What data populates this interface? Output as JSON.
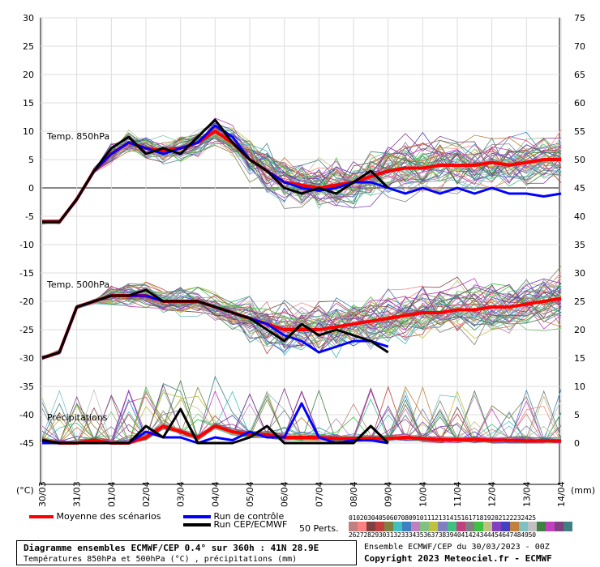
{
  "chart_data": {
    "type": "line",
    "title": "Diagramme ensembles ECMWF/CEP 0.4° sur 360h : 41N 28.9E",
    "subtitle": "Températures 850hPa et 500hPa (°C) , précipitations (mm)",
    "left_axis": {
      "unit": "(°C)",
      "ticks": [
        30,
        25,
        20,
        15,
        10,
        5,
        0,
        -5,
        -10,
        -15,
        -20,
        -25,
        -30,
        -35,
        -40,
        -45
      ],
      "range": [
        -45,
        30
      ]
    },
    "right_axis": {
      "unit": "(mm)",
      "ticks": [
        75,
        70,
        65,
        60,
        55,
        50,
        45,
        40,
        35,
        30,
        25,
        20,
        15,
        10,
        5,
        0
      ],
      "range": [
        0,
        75
      ]
    },
    "x_labels": [
      "30/03",
      "31/03",
      "01/04",
      "02/04",
      "03/04",
      "04/04",
      "05/04",
      "06/04",
      "07/04",
      "08/04",
      "09/04",
      "10/04",
      "11/04",
      "12/04",
      "13/04",
      "14/04"
    ],
    "panel_labels": {
      "t850": "Temp. 850hPa",
      "t500": "Temp. 500hPa",
      "precip": "Précipitations"
    },
    "series": [
      {
        "name": "Moyenne des scénarios",
        "color": "#ff0000",
        "panel": "t850",
        "x": [
          0,
          0.5,
          1,
          1.5,
          2,
          2.5,
          3,
          3.5,
          4,
          4.5,
          5,
          5.5,
          6,
          6.5,
          7,
          7.5,
          8,
          8.5,
          9,
          9.5,
          10,
          10.5,
          11,
          11.5,
          12,
          12.5,
          13,
          13.5,
          14,
          14.5,
          15
        ],
        "values": [
          -6,
          -6,
          -2,
          3,
          6,
          8,
          7,
          6.5,
          7,
          8,
          10,
          8,
          5,
          3,
          1,
          0.5,
          0,
          0.5,
          1,
          2,
          3,
          3.5,
          3.5,
          4,
          4,
          4,
          4.5,
          4,
          4.5,
          5,
          5
        ]
      },
      {
        "name": "Run de contrôle",
        "color": "#0000ff",
        "panel": "t850",
        "x": [
          0,
          0.5,
          1,
          1.5,
          2,
          2.5,
          3,
          3.5,
          4,
          4.5,
          5,
          5.5,
          6,
          6.5,
          7,
          7.5,
          8,
          8.5,
          9,
          9.5,
          10,
          10.5,
          11,
          11.5,
          12,
          12.5,
          13,
          13.5,
          14,
          14.5,
          15
        ],
        "values": [
          -6,
          -6,
          -2,
          3,
          6,
          8,
          7,
          6,
          7,
          8,
          11,
          9,
          5,
          3,
          1,
          0,
          -0.5,
          0,
          1,
          1,
          0,
          -1,
          0,
          -1,
          0,
          -1,
          0,
          -1,
          -1,
          -1.5,
          -1
        ]
      },
      {
        "name": "Run CEP/ECMWF",
        "color": "#000000",
        "panel": "t850",
        "x": [
          0,
          0.5,
          1,
          1.5,
          2,
          2.5,
          3,
          3.5,
          4,
          4.5,
          5,
          5.5,
          6,
          6.5,
          7,
          7.5,
          8,
          8.5,
          9,
          9.5,
          10
        ],
        "values": [
          -6,
          -6,
          -2,
          3,
          7,
          9,
          6,
          7,
          6,
          9,
          12,
          8,
          5,
          3,
          0,
          -1,
          0,
          -1,
          1,
          3,
          0
        ]
      },
      {
        "name": "Moyenne des scénarios",
        "color": "#ff0000",
        "panel": "t500",
        "x": [
          0,
          0.5,
          1,
          1.5,
          2,
          2.5,
          3,
          3.5,
          4,
          4.5,
          5,
          5.5,
          6,
          6.5,
          7,
          7.5,
          8,
          8.5,
          9,
          9.5,
          10,
          10.5,
          11,
          11.5,
          12,
          12.5,
          13,
          13.5,
          14,
          14.5,
          15
        ],
        "values": [
          -30,
          -29,
          -21,
          -20,
          -19,
          -19,
          -19,
          -20,
          -20,
          -20,
          -21,
          -22,
          -23,
          -24,
          -25,
          -25,
          -25,
          -24.5,
          -24,
          -23.5,
          -23,
          -22.5,
          -22,
          -22,
          -21.5,
          -21.5,
          -21,
          -21,
          -20.5,
          -20,
          -19.5
        ]
      },
      {
        "name": "Run de contrôle",
        "color": "#0000ff",
        "panel": "t500",
        "x": [
          0,
          0.5,
          1,
          1.5,
          2,
          2.5,
          3,
          3.5,
          4,
          4.5,
          5,
          5.5,
          6,
          6.5,
          7,
          7.5,
          8,
          8.5,
          9,
          9.5,
          10
        ],
        "values": [
          -30,
          -29,
          -21,
          -20,
          -19,
          -19,
          -19,
          -20,
          -20,
          -20,
          -21,
          -22,
          -23,
          -24,
          -26,
          -27,
          -29,
          -28,
          -27,
          -27,
          -28
        ]
      },
      {
        "name": "Run CEP/ECMWF",
        "color": "#000000",
        "panel": "t500",
        "x": [
          0,
          0.5,
          1,
          1.5,
          2,
          2.5,
          3,
          3.5,
          4,
          4.5,
          5,
          5.5,
          6,
          6.5,
          7,
          7.5,
          8,
          8.5,
          9,
          9.5,
          10
        ],
        "values": [
          -30,
          -29,
          -21,
          -20,
          -19,
          -19,
          -18,
          -20,
          -20,
          -20,
          -21,
          -22,
          -23,
          -25,
          -27,
          -24,
          -26,
          -25,
          -26,
          -27,
          -29
        ]
      },
      {
        "name": "Moyenne des scénarios",
        "color": "#ff0000",
        "panel": "precip",
        "x": [
          0,
          0.5,
          1,
          1.5,
          2,
          2.5,
          3,
          3.5,
          4,
          4.5,
          5,
          5.5,
          6,
          6.5,
          7,
          7.5,
          8,
          8.5,
          9,
          9.5,
          10,
          10.5,
          11,
          11.5,
          12,
          12.5,
          13,
          13.5,
          14,
          14.5,
          15
        ],
        "values": [
          0.5,
          0,
          0,
          0.5,
          0,
          0,
          1,
          3,
          2,
          1,
          3,
          2,
          1.5,
          1.5,
          1,
          1,
          1,
          0.8,
          0.8,
          0.8,
          0.8,
          1,
          0.8,
          0.6,
          0.6,
          0.6,
          0.5,
          0.5,
          0.4,
          0.4,
          0.4
        ]
      },
      {
        "name": "Run de contrôle",
        "color": "#0000ff",
        "panel": "precip",
        "x": [
          0,
          0.5,
          1,
          1.5,
          2,
          2.5,
          3,
          3.5,
          4,
          4.5,
          5,
          5.5,
          6,
          6.5,
          7,
          7.5,
          8,
          8.5,
          9,
          9.5,
          10
        ],
        "values": [
          0,
          0,
          0,
          0,
          0,
          0,
          2,
          1,
          1,
          0,
          1,
          0.5,
          2,
          1,
          1,
          7,
          1,
          0,
          0.5,
          0.5,
          0
        ]
      },
      {
        "name": "Run CEP/ECMWF",
        "color": "#000000",
        "panel": "precip",
        "x": [
          0,
          0.5,
          1,
          1.5,
          2,
          2.5,
          3,
          3.5,
          4,
          4.5,
          5,
          5.5,
          6,
          6.5,
          7,
          7.5,
          8,
          8.5,
          9,
          9.5,
          10
        ],
        "values": [
          0.5,
          0,
          0,
          0,
          0,
          0,
          3,
          1,
          6,
          0,
          0,
          0,
          1,
          3,
          0,
          0,
          0,
          0,
          0,
          3,
          0
        ]
      }
    ],
    "ensemble_members": 50,
    "grid": true
  },
  "legend": {
    "mean_label": "Moyenne des scénarios",
    "control_label": "Run de contrôle",
    "cep_label": "Run CEP/ECMWF",
    "perts_label": "50 Perts.",
    "member_numbers_row1": "01020304050607080910111213141516171819202122232425",
    "member_numbers_row2": "26272829303132333435363738394041424344454647484950",
    "colors": [
      "#c08080",
      "#ff8080",
      "#804040",
      "#c04040",
      "#808040",
      "#40c0c0",
      "#4080c0",
      "#c080c0",
      "#80c080",
      "#c0c040",
      "#8080c0",
      "#40c080",
      "#c04080",
      "#808080",
      "#40c040",
      "#c0c080",
      "#8040c0",
      "#4040c0",
      "#c08040",
      "#80c0c0",
      "#c0c0c0",
      "#408040",
      "#c040c0",
      "#804080",
      "#408080"
    ]
  },
  "footer": {
    "title": "Diagramme ensembles ECMWF/CEP 0.4° sur 360h : 41N 28.9E",
    "subtitle": "Températures 850hPa et 500hPa (°C) , précipitations (mm)",
    "run_info": "Ensemble ECMWF/CEP du 30/03/2023 - 00Z",
    "copyright": "Copyright 2023 Meteociel.fr - ECMWF"
  }
}
